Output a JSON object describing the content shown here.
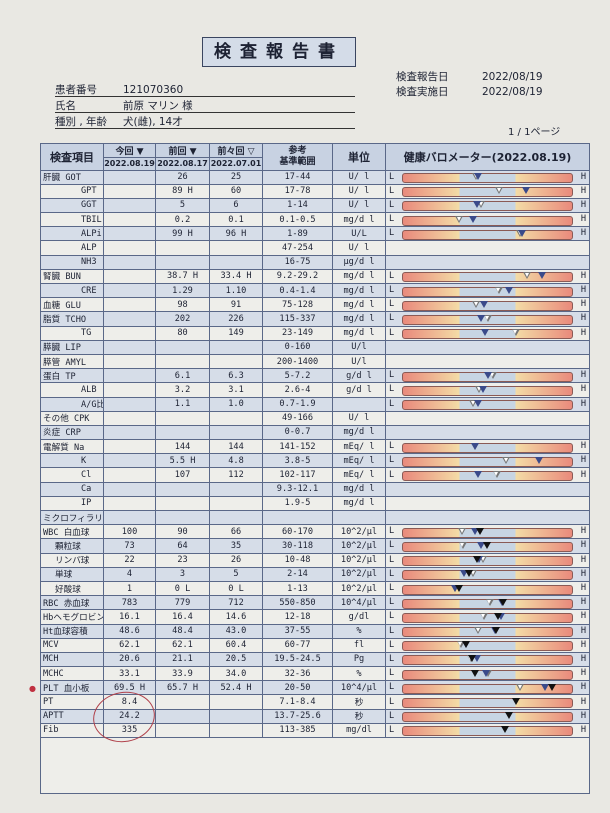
{
  "title": "検査報告書",
  "patient": {
    "id_label": "患者番号",
    "id": "121070360",
    "name_label": "氏名",
    "name": "前原 マリン 様",
    "species_label": "種別 , 年齢",
    "species": "犬(雌), 14才"
  },
  "report_date_label": "検査報告日",
  "report_date": "2022/08/19",
  "exam_date_label": "検査実施日",
  "exam_date": "2022/08/19",
  "page": "1 / 1ページ",
  "header": {
    "item": "検査項目",
    "current": "今回 ▼",
    "prev": "前回 ▼",
    "prev2": "前々回 ▽",
    "current_date": "2022.08.19",
    "prev_date": "2022.08.17",
    "prev2_date": "2022.07.01",
    "range": "参考\n基準範囲",
    "unit": "単位",
    "barometer": "健康バロメーター(2022.08.19)",
    "low": "L",
    "high": "H"
  },
  "colors": {
    "current_marker": "#111111",
    "prev_marker": "#3a4a8a",
    "prev2_marker": "#ffffff",
    "circle": "#b0404a"
  },
  "rows": [
    {
      "item": "肝臓 GOT",
      "cur": "",
      "prev": "26",
      "prev2": "25",
      "range": "17-44",
      "unit": "U/ l",
      "bar": true
    },
    {
      "item": "GPT",
      "cur": "",
      "prev": "89 H",
      "prev2": "60",
      "range": "17-78",
      "unit": "U/ l",
      "bar": true
    },
    {
      "item": "GGT",
      "cur": "",
      "prev": "5",
      "prev2": "6",
      "range": "1-14",
      "unit": "U/ l",
      "bar": true
    },
    {
      "item": "TBIL",
      "cur": "",
      "prev": "0.2",
      "prev2": "0.1",
      "range": "0.1-0.5",
      "unit": "mg/d l",
      "bar": true
    },
    {
      "item": "ALPi",
      "cur": "",
      "prev": "99 H",
      "prev2": "96 H",
      "range": "1-89",
      "unit": "U/L",
      "bar": true
    },
    {
      "item": "ALP",
      "cur": "",
      "prev": "",
      "prev2": "",
      "range": "47-254",
      "unit": "U/ l",
      "bar": false
    },
    {
      "item": "NH3",
      "cur": "",
      "prev": "",
      "prev2": "",
      "range": "16-75",
      "unit": "μg/d l",
      "bar": false
    },
    {
      "item": "腎臓 BUN",
      "cur": "",
      "prev": "38.7 H",
      "prev2": "33.4 H",
      "range": "9.2-29.2",
      "unit": "mg/d l",
      "bar": true
    },
    {
      "item": "CRE",
      "cur": "",
      "prev": "1.29",
      "prev2": "1.10",
      "range": "0.4-1.4",
      "unit": "mg/d l",
      "bar": true
    },
    {
      "item": "血糖 GLU",
      "cur": "",
      "prev": "98",
      "prev2": "91",
      "range": "75-128",
      "unit": "mg/d l",
      "bar": true
    },
    {
      "item": "脂質 TCHO",
      "cur": "",
      "prev": "202",
      "prev2": "226",
      "range": "115-337",
      "unit": "mg/d l",
      "bar": true
    },
    {
      "item": "TG",
      "cur": "",
      "prev": "80",
      "prev2": "149",
      "range": "23-149",
      "unit": "mg/d l",
      "bar": true
    },
    {
      "item": "膵臓 LIP",
      "cur": "",
      "prev": "",
      "prev2": "",
      "range": "0-160",
      "unit": "U/l",
      "bar": false
    },
    {
      "item": "膵管 AMYL",
      "cur": "",
      "prev": "",
      "prev2": "",
      "range": "200-1400",
      "unit": "U/l",
      "bar": false
    },
    {
      "item": "蛋白 TP",
      "cur": "",
      "prev": "6.1",
      "prev2": "6.3",
      "range": "5-7.2",
      "unit": "g/d l",
      "bar": true
    },
    {
      "item": "ALB",
      "cur": "",
      "prev": "3.2",
      "prev2": "3.1",
      "range": "2.6-4",
      "unit": "g/d l",
      "bar": true
    },
    {
      "item": "A/G比",
      "cur": "",
      "prev": "1.1",
      "prev2": "1.0",
      "range": "0.7-1.9",
      "unit": "",
      "bar": true
    },
    {
      "item": "その他 CPK",
      "cur": "",
      "prev": "",
      "prev2": "",
      "range": "49-166",
      "unit": "U/ l",
      "bar": false
    },
    {
      "item": "炎症 CRP",
      "cur": "",
      "prev": "",
      "prev2": "",
      "range": "0-0.7",
      "unit": "mg/d l",
      "bar": false
    },
    {
      "item": "電解質 Na",
      "cur": "",
      "prev": "144",
      "prev2": "144",
      "range": "141-152",
      "unit": "mEq/ l",
      "bar": true
    },
    {
      "item": "K",
      "cur": "",
      "prev": "5.5 H",
      "prev2": "4.8",
      "range": "3.8-5",
      "unit": "mEq/ l",
      "bar": true
    },
    {
      "item": "Cl",
      "cur": "",
      "prev": "107",
      "prev2": "112",
      "range": "102-117",
      "unit": "mEq/ l",
      "bar": true
    },
    {
      "item": "Ca",
      "cur": "",
      "prev": "",
      "prev2": "",
      "range": "9.3-12.1",
      "unit": "mg/d l",
      "bar": false
    },
    {
      "item": "IP",
      "cur": "",
      "prev": "",
      "prev2": "",
      "range": "1.9-5",
      "unit": "mg/d l",
      "bar": false
    },
    {
      "item": "ミクロフィラリア",
      "cur": "",
      "prev": "",
      "prev2": "",
      "range": "",
      "unit": "",
      "bar": false
    },
    {
      "item": "WBC 白血球",
      "cur": "100",
      "prev": "90",
      "prev2": "66",
      "range": "60-170",
      "unit": "10^2/μl",
      "bar": true
    },
    {
      "item": "顆粒球",
      "cur": "73",
      "prev": "64",
      "prev2": "35",
      "range": "30-118",
      "unit": "10^2/μl",
      "bar": true
    },
    {
      "item": "リンパ球",
      "cur": "22",
      "prev": "23",
      "prev2": "26",
      "range": "10-48",
      "unit": "10^2/μl",
      "bar": true
    },
    {
      "item": "単球",
      "cur": "4",
      "prev": "3",
      "prev2": "5",
      "range": "2-14",
      "unit": "10^2/μl",
      "bar": true
    },
    {
      "item": "好酸球",
      "cur": "1",
      "prev": "0 L",
      "prev2": "0 L",
      "range": "1-13",
      "unit": "10^2/μl",
      "bar": true
    },
    {
      "item": "RBC 赤血球",
      "cur": "783",
      "prev": "779",
      "prev2": "712",
      "range": "550-850",
      "unit": "10^4/μl",
      "bar": true
    },
    {
      "item": "Hbヘモグロビン",
      "cur": "16.1",
      "prev": "16.4",
      "prev2": "14.6",
      "range": "12-18",
      "unit": "g/dl",
      "bar": true
    },
    {
      "item": "Ht血球容積",
      "cur": "48.6",
      "prev": "48.4",
      "prev2": "43.0",
      "range": "37-55",
      "unit": "%",
      "bar": true
    },
    {
      "item": "MCV",
      "cur": "62.1",
      "prev": "62.1",
      "prev2": "60.4",
      "range": "60-77",
      "unit": "fl",
      "bar": true
    },
    {
      "item": "MCH",
      "cur": "20.6",
      "prev": "21.1",
      "prev2": "20.5",
      "range": "19.5-24.5",
      "unit": "Pg",
      "bar": true
    },
    {
      "item": "MCHC",
      "cur": "33.1",
      "prev": "33.9",
      "prev2": "34.0",
      "range": "32-36",
      "unit": "%",
      "bar": true
    },
    {
      "item": "PLT 血小板",
      "cur": "69.5 H",
      "prev": "65.7 H",
      "prev2": "52.4 H",
      "range": "20-50",
      "unit": "10^4/μl",
      "bar": true
    },
    {
      "item": "PT",
      "cur": "8.4",
      "prev": "",
      "prev2": "",
      "range": "7.1-8.4",
      "unit": "秒",
      "bar": true
    },
    {
      "item": "APTT",
      "cur": "24.2",
      "prev": "",
      "prev2": "",
      "range": "13.7-25.6",
      "unit": "秒",
      "bar": true
    },
    {
      "item": "Fib",
      "cur": "335",
      "prev": "",
      "prev2": "",
      "range": "113-385",
      "unit": "mg/dl",
      "bar": true
    }
  ]
}
